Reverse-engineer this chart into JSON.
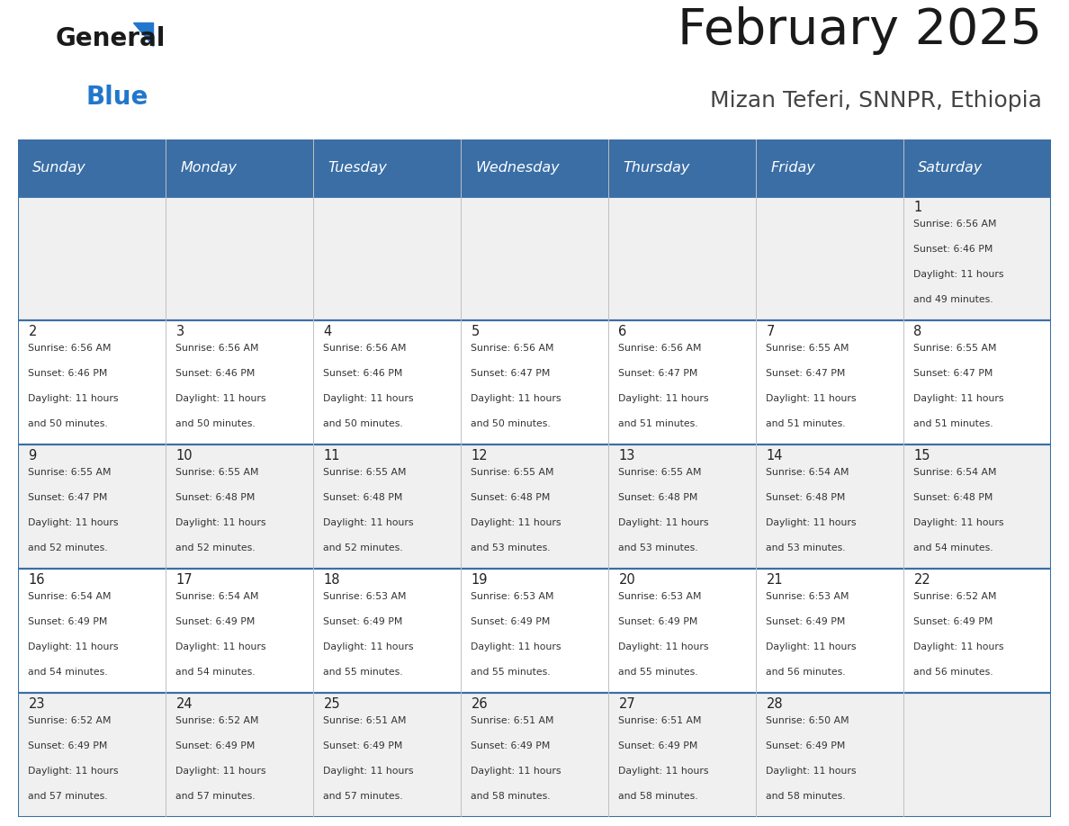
{
  "title": "February 2025",
  "subtitle": "Mizan Teferi, SNNPR, Ethiopia",
  "header_color": "#3a6ea5",
  "header_text_color": "#ffffff",
  "cell_bg_odd": "#f0f0f0",
  "cell_bg_even": "#ffffff",
  "border_color": "#3a6ea5",
  "thin_border_color": "#c0c0c0",
  "day_headers": [
    "Sunday",
    "Monday",
    "Tuesday",
    "Wednesday",
    "Thursday",
    "Friday",
    "Saturday"
  ],
  "title_color": "#1a1a1a",
  "subtitle_color": "#444444",
  "logo_general_color": "#1a1a1a",
  "logo_blue_color": "#2277cc",
  "calendar": [
    [
      null,
      null,
      null,
      null,
      null,
      null,
      {
        "day": 1,
        "sunrise": "6:56 AM",
        "sunset": "6:46 PM",
        "daylight_hours": 11,
        "daylight_minutes": 49
      }
    ],
    [
      {
        "day": 2,
        "sunrise": "6:56 AM",
        "sunset": "6:46 PM",
        "daylight_hours": 11,
        "daylight_minutes": 50
      },
      {
        "day": 3,
        "sunrise": "6:56 AM",
        "sunset": "6:46 PM",
        "daylight_hours": 11,
        "daylight_minutes": 50
      },
      {
        "day": 4,
        "sunrise": "6:56 AM",
        "sunset": "6:46 PM",
        "daylight_hours": 11,
        "daylight_minutes": 50
      },
      {
        "day": 5,
        "sunrise": "6:56 AM",
        "sunset": "6:47 PM",
        "daylight_hours": 11,
        "daylight_minutes": 50
      },
      {
        "day": 6,
        "sunrise": "6:56 AM",
        "sunset": "6:47 PM",
        "daylight_hours": 11,
        "daylight_minutes": 51
      },
      {
        "day": 7,
        "sunrise": "6:55 AM",
        "sunset": "6:47 PM",
        "daylight_hours": 11,
        "daylight_minutes": 51
      },
      {
        "day": 8,
        "sunrise": "6:55 AM",
        "sunset": "6:47 PM",
        "daylight_hours": 11,
        "daylight_minutes": 51
      }
    ],
    [
      {
        "day": 9,
        "sunrise": "6:55 AM",
        "sunset": "6:47 PM",
        "daylight_hours": 11,
        "daylight_minutes": 52
      },
      {
        "day": 10,
        "sunrise": "6:55 AM",
        "sunset": "6:48 PM",
        "daylight_hours": 11,
        "daylight_minutes": 52
      },
      {
        "day": 11,
        "sunrise": "6:55 AM",
        "sunset": "6:48 PM",
        "daylight_hours": 11,
        "daylight_minutes": 52
      },
      {
        "day": 12,
        "sunrise": "6:55 AM",
        "sunset": "6:48 PM",
        "daylight_hours": 11,
        "daylight_minutes": 53
      },
      {
        "day": 13,
        "sunrise": "6:55 AM",
        "sunset": "6:48 PM",
        "daylight_hours": 11,
        "daylight_minutes": 53
      },
      {
        "day": 14,
        "sunrise": "6:54 AM",
        "sunset": "6:48 PM",
        "daylight_hours": 11,
        "daylight_minutes": 53
      },
      {
        "day": 15,
        "sunrise": "6:54 AM",
        "sunset": "6:48 PM",
        "daylight_hours": 11,
        "daylight_minutes": 54
      }
    ],
    [
      {
        "day": 16,
        "sunrise": "6:54 AM",
        "sunset": "6:49 PM",
        "daylight_hours": 11,
        "daylight_minutes": 54
      },
      {
        "day": 17,
        "sunrise": "6:54 AM",
        "sunset": "6:49 PM",
        "daylight_hours": 11,
        "daylight_minutes": 54
      },
      {
        "day": 18,
        "sunrise": "6:53 AM",
        "sunset": "6:49 PM",
        "daylight_hours": 11,
        "daylight_minutes": 55
      },
      {
        "day": 19,
        "sunrise": "6:53 AM",
        "sunset": "6:49 PM",
        "daylight_hours": 11,
        "daylight_minutes": 55
      },
      {
        "day": 20,
        "sunrise": "6:53 AM",
        "sunset": "6:49 PM",
        "daylight_hours": 11,
        "daylight_minutes": 55
      },
      {
        "day": 21,
        "sunrise": "6:53 AM",
        "sunset": "6:49 PM",
        "daylight_hours": 11,
        "daylight_minutes": 56
      },
      {
        "day": 22,
        "sunrise": "6:52 AM",
        "sunset": "6:49 PM",
        "daylight_hours": 11,
        "daylight_minutes": 56
      }
    ],
    [
      {
        "day": 23,
        "sunrise": "6:52 AM",
        "sunset": "6:49 PM",
        "daylight_hours": 11,
        "daylight_minutes": 57
      },
      {
        "day": 24,
        "sunrise": "6:52 AM",
        "sunset": "6:49 PM",
        "daylight_hours": 11,
        "daylight_minutes": 57
      },
      {
        "day": 25,
        "sunrise": "6:51 AM",
        "sunset": "6:49 PM",
        "daylight_hours": 11,
        "daylight_minutes": 57
      },
      {
        "day": 26,
        "sunrise": "6:51 AM",
        "sunset": "6:49 PM",
        "daylight_hours": 11,
        "daylight_minutes": 58
      },
      {
        "day": 27,
        "sunrise": "6:51 AM",
        "sunset": "6:49 PM",
        "daylight_hours": 11,
        "daylight_minutes": 58
      },
      {
        "day": 28,
        "sunrise": "6:50 AM",
        "sunset": "6:49 PM",
        "daylight_hours": 11,
        "daylight_minutes": 58
      },
      null
    ]
  ]
}
